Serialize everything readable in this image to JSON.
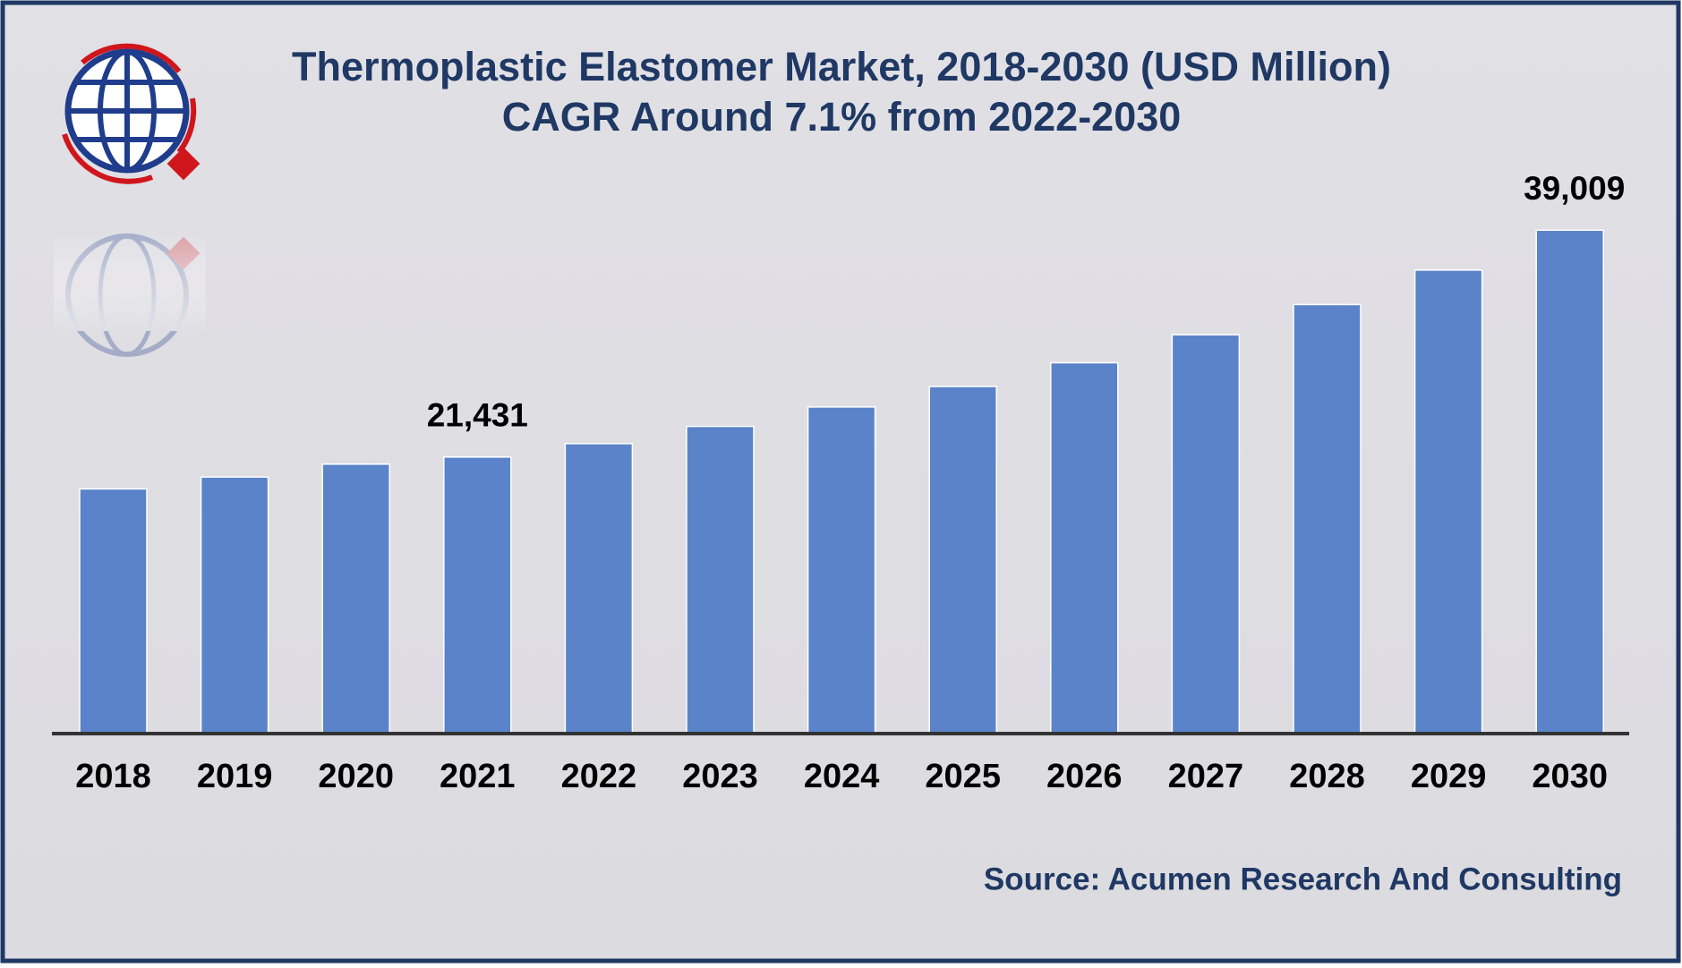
{
  "chart_data": {
    "type": "bar",
    "title": "Thermoplastic Elastomer Market, 2018-2030 (USD Million)",
    "subtitle": "CAGR Around 7.1% from 2022-2030",
    "source": "Source: Acumen Research And Consulting",
    "categories": [
      "2018",
      "2019",
      "2020",
      "2021",
      "2022",
      "2023",
      "2024",
      "2025",
      "2026",
      "2027",
      "2028",
      "2029",
      "2030"
    ],
    "values": [
      18960,
      19880,
      20880,
      21431,
      22470,
      23806,
      25310,
      26896,
      28734,
      30906,
      33245,
      35918,
      39009
    ],
    "value_labels": [
      null,
      null,
      null,
      "21,431",
      null,
      null,
      null,
      null,
      null,
      null,
      null,
      null,
      "39,009"
    ],
    "color": "#5b83c9",
    "ylim": [
      0,
      40000
    ]
  }
}
